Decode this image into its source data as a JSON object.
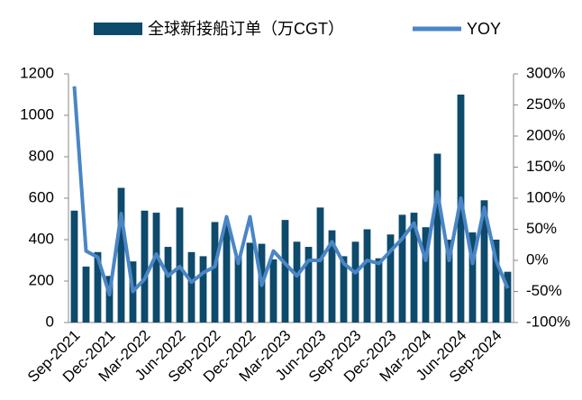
{
  "chart_data": {
    "type": "bar-line",
    "categories": [
      "Sep-2021",
      null,
      null,
      "Dec-2021",
      null,
      null,
      "Mar-2022",
      null,
      null,
      "Jun-2022",
      null,
      null,
      "Sep-2022",
      null,
      null,
      "Dec-2022",
      null,
      null,
      "Mar-2023",
      null,
      null,
      "Jun-2023",
      null,
      null,
      "Sep-2023",
      null,
      null,
      "Dec-2023",
      null,
      null,
      "Mar-2024",
      null,
      null,
      "Jun-2024",
      null,
      null,
      "Sep-2024",
      null
    ],
    "series": [
      {
        "name": "全球新接船订单（万CGT）",
        "color": "#0d4a6b",
        "type": "bar",
        "values": [
          540,
          270,
          340,
          225,
          650,
          295,
          540,
          530,
          365,
          555,
          340,
          320,
          485,
          475,
          320,
          385,
          380,
          305,
          495,
          390,
          365,
          555,
          445,
          320,
          390,
          450,
          310,
          425,
          520,
          530,
          460,
          815,
          400,
          1100,
          435,
          590,
          400,
          245
        ]
      },
      {
        "name": "YOY",
        "color": "#4a86c5",
        "type": "line",
        "axis": "y2",
        "values": [
          280,
          15,
          5,
          -55,
          75,
          -50,
          -30,
          10,
          -25,
          -10,
          -35,
          -20,
          -10,
          70,
          -5,
          70,
          -40,
          15,
          -5,
          -25,
          0,
          0,
          30,
          -5,
          -20,
          0,
          -5,
          15,
          35,
          60,
          0,
          110,
          0,
          100,
          -5,
          85,
          0,
          -45
        ]
      }
    ],
    "ylim": [
      0,
      1200
    ],
    "yticks": [
      0,
      200,
      400,
      600,
      800,
      1000,
      1200
    ],
    "y2lim": [
      -100,
      300
    ],
    "y2ticks": [
      {
        "value": -100,
        "label": "-100%"
      },
      {
        "value": -50,
        "label": "-50%"
      },
      {
        "value": 0,
        "label": "0%"
      },
      {
        "value": 50,
        "label": "50%"
      },
      {
        "value": 100,
        "label": "100%"
      },
      {
        "value": 150,
        "label": "150%"
      },
      {
        "value": 200,
        "label": "200%"
      },
      {
        "value": 250,
        "label": "250%"
      },
      {
        "value": 300,
        "label": "300%"
      }
    ],
    "legend": "top"
  }
}
